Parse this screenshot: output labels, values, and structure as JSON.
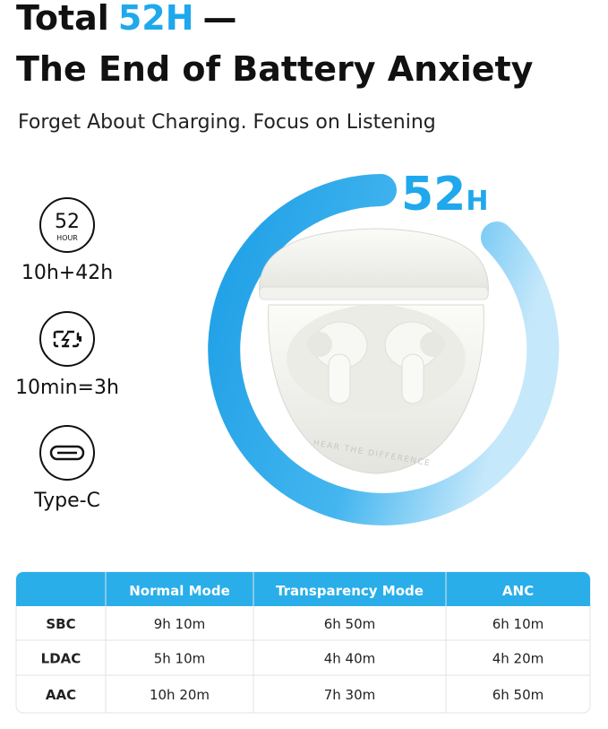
{
  "header": {
    "title_start": "Total",
    "title_highlight": "52H",
    "title_dash": "—",
    "title_line2": "The End of Battery Anxiety",
    "subtitle": "Forget About Charging. Focus on Listening"
  },
  "ring": {
    "number": "52",
    "unit": "H"
  },
  "case_text": "HEAR THE DIFFERENCE",
  "features": [
    {
      "icon_number": "52",
      "icon_unit": "HOUR",
      "label": "10h+42h"
    },
    {
      "label": "10min=3h"
    },
    {
      "label": "Type-C"
    }
  ],
  "table": {
    "header": [
      "Normal Mode",
      "Transparency Mode",
      "ANC"
    ],
    "rows": [
      [
        "SBC",
        "9h 10m",
        "6h 50m",
        "6h 10m"
      ],
      [
        "LDAC",
        "5h 10m",
        "4h 40m",
        "4h 20m"
      ],
      [
        "AAC",
        "10h 20m",
        "7h 30m",
        "6h 50m"
      ]
    ]
  }
}
